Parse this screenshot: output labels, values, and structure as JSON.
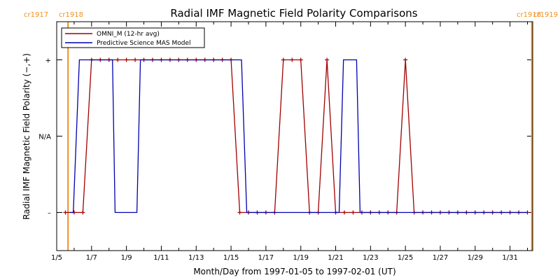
{
  "chart_data": {
    "type": "line",
    "title": "Radial IMF Magnetic Field Polarity Comparisons",
    "xlabel": "Month/Day from 1997-01-05 to 1997-02-01 (UT)",
    "ylabel": "Radial IMF Magnetic Field Polarity (−,+)",
    "x_unit": "days after 1997-01-05 00:00 UT",
    "xlim": [
      0,
      27.3
    ],
    "ylim": [
      -1.5,
      1.5
    ],
    "x_tick_values": [
      0,
      2,
      4,
      6,
      8,
      10,
      12,
      14,
      16,
      18,
      20,
      22,
      24,
      26
    ],
    "x_tick_labels": [
      "1/5",
      "1/7",
      "1/9",
      "1/11",
      "1/13",
      "1/15",
      "1/17",
      "1/19",
      "1/21",
      "1/23",
      "1/25",
      "1/27",
      "1/29",
      "1/31"
    ],
    "y_tick_values": [
      -1,
      0,
      1
    ],
    "y_tick_labels": [
      "–",
      "N/A",
      "+"
    ],
    "grid": false,
    "legend_position": "top-left",
    "series": [
      {
        "name": "OMNI_M (12-hr avg)",
        "color": "#a00000",
        "marker": "plus",
        "x": [
          0.5,
          1,
          1.5,
          2,
          2.5,
          3,
          3.5,
          4,
          4.5,
          5,
          5.5,
          6,
          6.5,
          7,
          7.5,
          8,
          8.5,
          9,
          9.5,
          10,
          10.5,
          11,
          11.5,
          12,
          12.5,
          13,
          13.5,
          14,
          14.5,
          15,
          15.5,
          16,
          16.5,
          17,
          17.5,
          18,
          18.5,
          19,
          19.5,
          20,
          20.5,
          21,
          21.5,
          22,
          22.5,
          23,
          23.5,
          24,
          24.5,
          25,
          25.5,
          26,
          26.5,
          27
        ],
        "y": [
          -1,
          -1,
          -1,
          1,
          1,
          1,
          1,
          1,
          1,
          1,
          1,
          1,
          1,
          1,
          1,
          1,
          1,
          1,
          1,
          1,
          -1,
          -1,
          -1,
          -1,
          -1,
          1,
          1,
          1,
          -1,
          -1,
          1,
          -1,
          -1,
          -1,
          -1,
          -1,
          -1,
          -1,
          -1,
          1,
          -1,
          -1,
          -1,
          -1,
          -1,
          -1,
          -1,
          -1,
          -1,
          -1,
          -1,
          -1,
          -1,
          -1
        ]
      },
      {
        "name": "Predictive Science MAS Model",
        "color": "#0000b0",
        "marker": "none",
        "x": [
          0.75,
          0.95,
          1.3,
          3.2,
          3.35,
          4.6,
          4.8,
          10.5,
          10.6,
          10.9,
          16.2,
          16.45,
          17.2,
          17.4,
          27.0
        ],
        "y": [
          -1,
          -1,
          1,
          1,
          -1,
          -1,
          1,
          1,
          1,
          -1,
          -1,
          1,
          1,
          -1,
          -1
        ]
      }
    ],
    "vertical_markers": [
      {
        "x": 0.65,
        "color": "#f09020",
        "labels": [
          "cr1917",
          "cr1918"
        ],
        "label_side": "left"
      },
      {
        "x": 27.25,
        "color": "#f09020",
        "labels": [
          "cr1918",
          "cr1919"
        ],
        "label_side": "right"
      }
    ]
  }
}
